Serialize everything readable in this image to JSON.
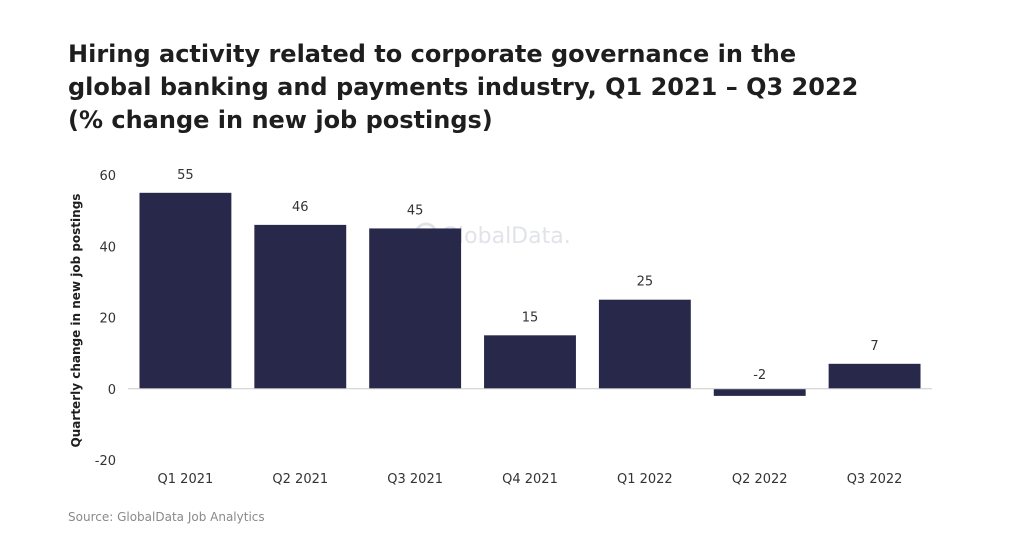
{
  "title_lines": [
    "Hiring activity related to corporate governance in the",
    "global banking and payments industry, Q1 2021 – Q3 2022",
    "(% change in new job postings)"
  ],
  "source": "Source: GlobalData Job Analytics",
  "watermark": "GlobalData.",
  "colors": {
    "bar": "#28284a",
    "axis": "#cccccc",
    "text": "#333333"
  },
  "chart_data": {
    "type": "bar",
    "title": "Hiring activity related to corporate governance in the global banking and payments industry, Q1 2021 – Q3 2022 (% change in new job postings)",
    "xlabel": "",
    "ylabel": "Quarterly change in new job postings",
    "categories": [
      "Q1 2021",
      "Q2 2021",
      "Q3 2021",
      "Q4 2021",
      "Q1 2022",
      "Q2 2022",
      "Q3 2022"
    ],
    "values": [
      55,
      46,
      45,
      15,
      25,
      -2,
      7
    ],
    "ylim": [
      -20,
      60
    ],
    "yticks": [
      -20,
      0,
      20,
      40,
      60
    ],
    "grid": false,
    "data_labels": true
  }
}
